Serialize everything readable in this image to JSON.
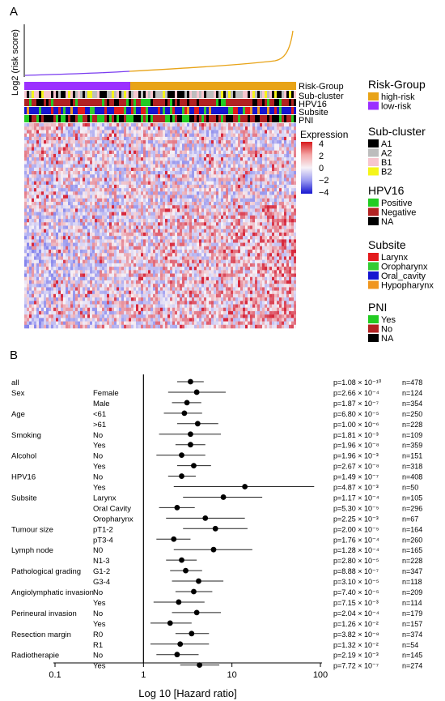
{
  "panel_a": {
    "label": "A",
    "risk_axis_label": "Log2 (risk score)",
    "row_labels": [
      "Risk-Group",
      "Sub-cluster",
      "HPV16",
      "Subsite",
      "PNI"
    ],
    "expression_legend": {
      "title": "Expression",
      "ticks": [
        "4",
        "2",
        "0",
        "−2",
        "−4"
      ],
      "colors": [
        "#d7191c",
        "#f4a6a6",
        "#f7f2f7",
        "#9a9af0",
        "#1515d0"
      ]
    },
    "legends": [
      {
        "title": "Risk-Group",
        "items": [
          {
            "label": "high-risk",
            "color": "#e8a317"
          },
          {
            "label": "low-risk",
            "color": "#9b30ff"
          }
        ]
      },
      {
        "title": "Sub-cluster",
        "items": [
          {
            "label": "A1",
            "color": "#000000"
          },
          {
            "label": "A2",
            "color": "#bdbdbd"
          },
          {
            "label": "B1",
            "color": "#f7c6cf"
          },
          {
            "label": "B2",
            "color": "#f5f51a"
          }
        ]
      },
      {
        "title": "HPV16",
        "items": [
          {
            "label": "Positive",
            "color": "#22cc22"
          },
          {
            "label": "Negative",
            "color": "#b22222"
          },
          {
            "label": "NA",
            "color": "#000000"
          }
        ]
      },
      {
        "title": "Subsite",
        "items": [
          {
            "label": "Larynx",
            "color": "#e31a1c"
          },
          {
            "label": "Oropharynx",
            "color": "#33cc33"
          },
          {
            "label": "Oral_cavity",
            "color": "#1515d0"
          },
          {
            "label": "Hypopharynx",
            "color": "#f0961e"
          }
        ]
      },
      {
        "title": "PNI",
        "items": [
          {
            "label": "Yes",
            "color": "#22cc22"
          },
          {
            "label": "No",
            "color": "#b22222"
          },
          {
            "label": "NA",
            "color": "#000000"
          }
        ]
      }
    ]
  },
  "panel_b": {
    "label": "B",
    "xlabel": "Log 10 [Hazard ratio]",
    "x_ticks": [
      "0.1",
      "1",
      "10",
      "100"
    ]
  },
  "chart_data": {
    "type": "forest",
    "xlabel": "Log 10 [Hazard ratio]",
    "x_scale": "log10",
    "xlim": [
      0.1,
      100
    ],
    "reference_line": 1,
    "rows": [
      {
        "group": "all",
        "level": "",
        "hr": 3.4,
        "lo": 2.4,
        "hi": 4.8,
        "p": "p=1.08 × 10⁻¹⁰",
        "n": "n=478"
      },
      {
        "group": "Sex",
        "level": "Female",
        "hr": 4.0,
        "lo": 1.9,
        "hi": 8.5,
        "p": "p=2.66 × 10⁻⁴",
        "n": "n=124"
      },
      {
        "group": "",
        "level": "Male",
        "hr": 3.1,
        "lo": 2.1,
        "hi": 4.5,
        "p": "p=1.87 × 10⁻⁷",
        "n": "n=354"
      },
      {
        "group": "Age",
        "level": "<61",
        "hr": 2.9,
        "lo": 1.7,
        "hi": 4.6,
        "p": "p=6.80 × 10⁻⁵",
        "n": "n=250"
      },
      {
        "group": "",
        "level": ">61",
        "hr": 4.1,
        "lo": 2.4,
        "hi": 7.0,
        "p": "p=1.00 × 10⁻⁶",
        "n": "n=228"
      },
      {
        "group": "Smoking",
        "level": "No",
        "hr": 3.4,
        "lo": 1.5,
        "hi": 7.5,
        "p": "p=1.81 × 10⁻³",
        "n": "n=109"
      },
      {
        "group": "",
        "level": "Yes",
        "hr": 3.4,
        "lo": 2.3,
        "hi": 5.0,
        "p": "p=1.96 × 10⁻⁸",
        "n": "n=359"
      },
      {
        "group": "Alcohol",
        "level": "No",
        "hr": 2.7,
        "lo": 1.4,
        "hi": 5.0,
        "p": "p=1.96 × 10⁻³",
        "n": "n=151"
      },
      {
        "group": "",
        "level": "Yes",
        "hr": 3.7,
        "lo": 2.4,
        "hi": 5.8,
        "p": "p=2.67 × 10⁻⁸",
        "n": "n=318"
      },
      {
        "group": "HPV16",
        "level": "No",
        "hr": 2.7,
        "lo": 1.9,
        "hi": 3.9,
        "p": "p=1.49 × 10⁻⁷",
        "n": "n=408"
      },
      {
        "group": "",
        "level": "Yes",
        "hr": 14.0,
        "lo": 2.2,
        "hi": 85.0,
        "p": "p=4.87 × 10⁻³",
        "n": "n=50"
      },
      {
        "group": "Subsite",
        "level": "Larynx",
        "hr": 8.0,
        "lo": 2.8,
        "hi": 22.0,
        "p": "p=1.17 × 10⁻⁴",
        "n": "n=105"
      },
      {
        "group": "",
        "level": "Oral Cavity",
        "hr": 2.4,
        "lo": 1.5,
        "hi": 3.8,
        "p": "p=5.30 × 10⁻⁵",
        "n": "n=296"
      },
      {
        "group": "",
        "level": "Oropharynx",
        "hr": 5.0,
        "lo": 1.8,
        "hi": 14.0,
        "p": "p=2.25 × 10⁻³",
        "n": "n=67"
      },
      {
        "group": "Tumour size",
        "level": "pT1-2",
        "hr": 6.5,
        "lo": 2.8,
        "hi": 15.0,
        "p": "p=2.00 × 10⁻⁵",
        "n": "n=164"
      },
      {
        "group": "",
        "level": "pT3-4",
        "hr": 2.2,
        "lo": 1.4,
        "hi": 3.4,
        "p": "p=1.76 × 10⁻⁴",
        "n": "n=260"
      },
      {
        "group": "Lymph node",
        "level": "N0",
        "hr": 6.2,
        "lo": 2.2,
        "hi": 17.0,
        "p": "p=1.28 × 10⁻⁴",
        "n": "n=165"
      },
      {
        "group": "",
        "level": "N1-3",
        "hr": 2.7,
        "lo": 1.8,
        "hi": 4.0,
        "p": "p=2.80 × 10⁻⁵",
        "n": "n=228"
      },
      {
        "group": "Pathological grading",
        "level": "G1-2",
        "hr": 3.0,
        "lo": 2.0,
        "hi": 4.6,
        "p": "p=8.88 × 10⁻⁷",
        "n": "n=347"
      },
      {
        "group": "",
        "level": "G3-4",
        "hr": 4.2,
        "lo": 2.1,
        "hi": 8.0,
        "p": "p=3.10 × 10⁻⁵",
        "n": "n=118"
      },
      {
        "group": "Angiolymphatic invasion",
        "level": "No",
        "hr": 3.7,
        "lo": 2.3,
        "hi": 6.0,
        "p": "p=7.40 × 10⁻⁵",
        "n": "n=209"
      },
      {
        "group": "",
        "level": "Yes",
        "hr": 2.5,
        "lo": 1.3,
        "hi": 4.9,
        "p": "p=7.15 × 10⁻³",
        "n": "n=114"
      },
      {
        "group": "Perineural invasion",
        "level": "No",
        "hr": 4.0,
        "lo": 2.1,
        "hi": 7.5,
        "p": "p=2.04 × 10⁻⁴",
        "n": "n=179"
      },
      {
        "group": "",
        "level": "Yes",
        "hr": 2.0,
        "lo": 1.2,
        "hi": 3.5,
        "p": "p=1.26 × 10⁻²",
        "n": "n=157"
      },
      {
        "group": "Resection margin",
        "level": "R0",
        "hr": 3.5,
        "lo": 2.3,
        "hi": 5.5,
        "p": "p=3.82 × 10⁻⁸",
        "n": "n=374"
      },
      {
        "group": "",
        "level": "R1",
        "hr": 2.6,
        "lo": 1.2,
        "hi": 5.5,
        "p": "p=1.32 × 10⁻²",
        "n": "n=54"
      },
      {
        "group": "Radiotherapie",
        "level": "No",
        "hr": 2.4,
        "lo": 1.4,
        "hi": 4.2,
        "p": "p=2.19 × 10⁻³",
        "n": "n=145"
      },
      {
        "group": "",
        "level": "Yes",
        "hr": 4.3,
        "lo": 2.6,
        "hi": 7.2,
        "p": "p=7.72 × 10⁻⁷",
        "n": "n=274"
      }
    ]
  }
}
